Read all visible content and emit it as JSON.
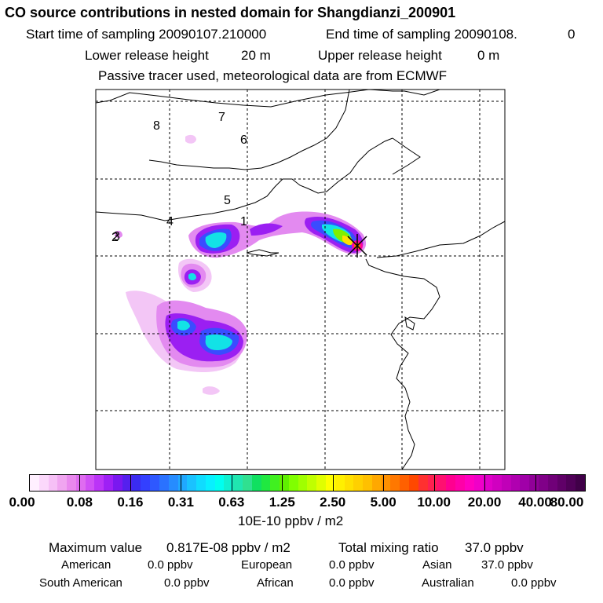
{
  "header": {
    "title": "CO  source contributions in nested domain for Shangdianzi_200901",
    "start_label": "Start time of sampling 20090107.210000",
    "end_label": "End time of sampling 20090108.",
    "end_value": "0",
    "lower_label": "Lower release height",
    "lower_value": "20 m",
    "upper_label": "Upper release height",
    "upper_value": "0 m",
    "note": "Passive tracer used, meteorological data are from ECMWF"
  },
  "map": {
    "region_labels": [
      "1",
      "2",
      "3",
      "4",
      "5",
      "6",
      "7",
      "8"
    ],
    "receptor": "Shangdianzi"
  },
  "colorbar": {
    "tick_labels": [
      "0.00",
      "0.08",
      "0.16",
      "0.31",
      "0.63",
      "1.25",
      "2.50",
      "5.00",
      "10.00",
      "20.00",
      "40.00",
      "80.00"
    ],
    "unit": "10E-10 ppbv / m2",
    "colors": [
      "#fff0ff",
      "#fbd8fb",
      "#f6c0f6",
      "#f0a5f0",
      "#e988ee",
      "#df6cf0",
      "#d050f5",
      "#bb34f7",
      "#9e20f5",
      "#7a18f0",
      "#5520ee",
      "#3a2cf0",
      "#3340ff",
      "#2e58ff",
      "#2a72ff",
      "#268cff",
      "#20a8ff",
      "#1ac2ff",
      "#10dcff",
      "#08f0ff",
      "#00fff0",
      "#10f0d0",
      "#20e6b0",
      "#30e090",
      "#10e060",
      "#20e840",
      "#40f020",
      "#60f000",
      "#80ff00",
      "#a0ff00",
      "#c0ff00",
      "#e0ff00",
      "#ffff00",
      "#fff000",
      "#ffe000",
      "#ffd000",
      "#ffc000",
      "#ffa800",
      "#ff9000",
      "#ff7800",
      "#ff6000",
      "#ff4800",
      "#ff3030",
      "#ff2050",
      "#ff1070",
      "#ff0090",
      "#ff00a8",
      "#ff00c0",
      "#f000c8",
      "#e000c8",
      "#d000c0",
      "#c000b8",
      "#b000b0",
      "#a000a8",
      "#900098",
      "#800088",
      "#700078",
      "#600068",
      "#500058",
      "#400048"
    ]
  },
  "stats": {
    "max_label": "Maximum value",
    "max_value": "0.817E-08 ppbv / m2",
    "total_label": "Total mixing ratio",
    "total_value": "37.0 ppbv",
    "regions": [
      {
        "name": "American",
        "value": "0.0 ppbv"
      },
      {
        "name": "European",
        "value": "0.0 ppbv"
      },
      {
        "name": "Asian",
        "value": "37.0 ppbv"
      },
      {
        "name": "South American",
        "value": "0.0 ppbv"
      },
      {
        "name": "African",
        "value": "0.0 ppbv"
      },
      {
        "name": "Australian",
        "value": "0.0 ppbv"
      }
    ]
  }
}
